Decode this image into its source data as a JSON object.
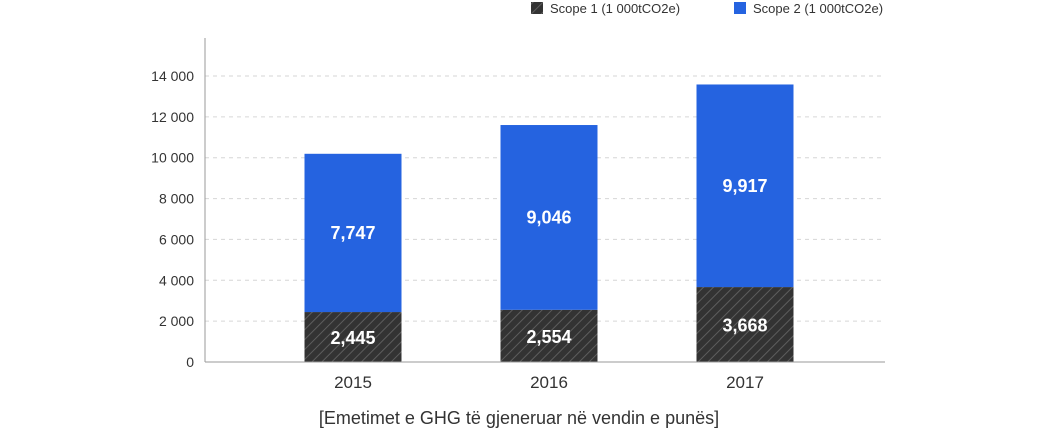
{
  "chart_data": {
    "type": "bar",
    "stacked": true,
    "categories": [
      "2015",
      "2016",
      "2017"
    ],
    "series": [
      {
        "name": "Scope 1 (1 000tCO2e)",
        "values": [
          2445,
          2554,
          3668
        ],
        "value_labels": [
          "2,445",
          "2,554",
          "3,668"
        ],
        "color": "#333333",
        "pattern": "diagonal-hatch"
      },
      {
        "name": "Scope 2 (1 000tCO2e)",
        "values": [
          7747,
          9046,
          9917
        ],
        "value_labels": [
          "7,747",
          "9,046",
          "9,917"
        ],
        "color": "#2563e0"
      }
    ],
    "ylim": [
      0,
      14000
    ],
    "yticks": [
      0,
      2000,
      4000,
      6000,
      8000,
      10000,
      12000,
      14000
    ],
    "ytick_labels": [
      "0",
      "2 000",
      "4 000",
      "6 000",
      "8 000",
      "10 000",
      "12 000",
      "14 000"
    ],
    "grid": true,
    "legend_position": "top-right",
    "caption": "[Emetimet e GHG të gjeneruar në vendin e punës]"
  }
}
